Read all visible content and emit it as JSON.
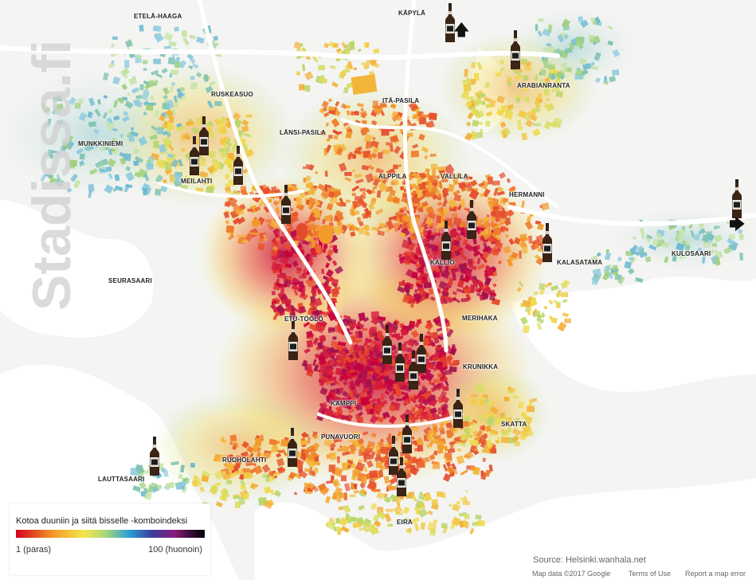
{
  "districts": [
    {
      "name": "ETELÄ-HAAGA",
      "label": "ETELÄ-HAAGA"
    },
    {
      "name": "KÄPYLÄ",
      "label": "KÄPYLÄ"
    },
    {
      "name": "RUSKEASUO",
      "label": "RUSKEASUO"
    },
    {
      "name": "ITÄ-PASILA",
      "label": "ITÄ-PASILA"
    },
    {
      "name": "ARABIANRANTA",
      "label": "ARABIANRANTA"
    },
    {
      "name": "LÄNSI-PASILA",
      "label": "LÄNSI-PASILA"
    },
    {
      "name": "MUNKKINIEMI",
      "label": "MUNKKINIEMI"
    },
    {
      "name": "MEILAHTI",
      "label": "MEILAHTI"
    },
    {
      "name": "ALPPILA",
      "label": "ALPPILA"
    },
    {
      "name": "VALLILA",
      "label": "VALLILA"
    },
    {
      "name": "HERMANNI",
      "label": "HERMANNI"
    },
    {
      "name": "KALLIO",
      "label": "KALLIO"
    },
    {
      "name": "KALASATAMA",
      "label": "KALASATAMA"
    },
    {
      "name": "KULOSAARI",
      "label": "KULOSAARI"
    },
    {
      "name": "SEURASAARI",
      "label": "SEURASAARI"
    },
    {
      "name": "MERIHAKA",
      "label": "MERIHAKA"
    },
    {
      "name": "ETU-TÖÖLÖ",
      "label": "ETU-TÖÖLÖ"
    },
    {
      "name": "KRUNIKKA",
      "label": "KRUNIKKA"
    },
    {
      "name": "KAMPPI",
      "label": "KAMPPI"
    },
    {
      "name": "SKATTA",
      "label": "SKATTA"
    },
    {
      "name": "PUNAVUORI",
      "label": "PUNAVUORI"
    },
    {
      "name": "RUOHOLAHTI",
      "label": "RUOHOLAHTI"
    },
    {
      "name": "LAUTTASAARI",
      "label": "LAUTTASAARI"
    },
    {
      "name": "EIRA",
      "label": "EIRA"
    }
  ],
  "legend": {
    "title": "Kotoa duuniin ja siitä bisselle -komboindeksi",
    "min_label": "1 (paras)",
    "max_label": "100 (huonoin)",
    "gradient_colors": [
      "#d7001a",
      "#f39a2a",
      "#f4e64b",
      "#a6d57a",
      "#2c9fd6",
      "#3b3d9e",
      "#8a1b7a",
      "#2b0a2b",
      "#000000"
    ]
  },
  "source": "Source: Helsinki.wanhala.net",
  "footer": {
    "map_data": "Map data ©2017 Google",
    "terms": "Terms of Use",
    "report": "Report a map error"
  },
  "watermark": "Stadissa.fi",
  "markers": {
    "icon": "beer-bottle-icon",
    "count": 20
  },
  "arrows": [
    {
      "direction": "up",
      "icon": "arrow-up-icon",
      "glyph": "🡅"
    },
    {
      "direction": "right",
      "icon": "arrow-right-icon",
      "glyph": "🡆"
    }
  ],
  "colors": {
    "land": "#f4f4f2",
    "water": "#ffffff",
    "road": "#ffffff",
    "best": "#d7001a",
    "worst": "#000000"
  }
}
